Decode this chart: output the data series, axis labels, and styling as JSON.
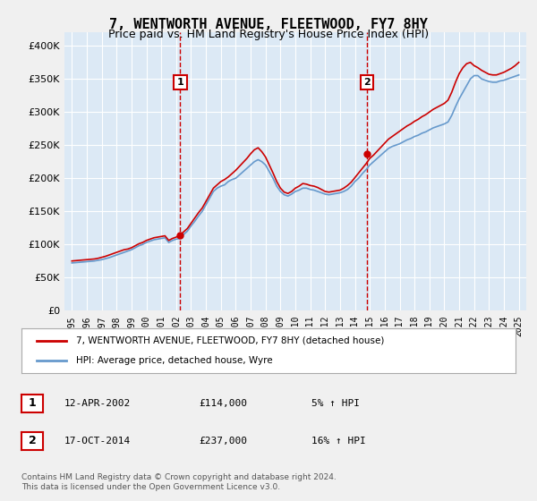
{
  "title": "7, WENTWORTH AVENUE, FLEETWOOD, FY7 8HY",
  "subtitle": "Price paid vs. HM Land Registry's House Price Index (HPI)",
  "background_color": "#dce9f5",
  "plot_bg_color": "#dce9f5",
  "ylabel_color": "#000000",
  "grid_color": "#ffffff",
  "hpi_line_color": "#6699cc",
  "price_line_color": "#cc0000",
  "vline_color": "#cc0000",
  "annotation_box_color": "#cc0000",
  "ylim": [
    0,
    420000
  ],
  "yticks": [
    0,
    50000,
    100000,
    150000,
    200000,
    250000,
    300000,
    350000,
    400000
  ],
  "ytick_labels": [
    "£0",
    "£50K",
    "£100K",
    "£150K",
    "£200K",
    "£250K",
    "£300K",
    "£350K",
    "£400K"
  ],
  "xlim_start": 1994.5,
  "xlim_end": 2025.5,
  "xticks": [
    1995,
    1996,
    1997,
    1998,
    1999,
    2000,
    2001,
    2002,
    2003,
    2004,
    2005,
    2006,
    2007,
    2008,
    2009,
    2010,
    2011,
    2012,
    2013,
    2014,
    2015,
    2016,
    2017,
    2018,
    2019,
    2020,
    2021,
    2022,
    2023,
    2024,
    2025
  ],
  "purchase1_x": 2002.28,
  "purchase1_y": 114000,
  "purchase1_label": "1",
  "purchase1_date": "12-APR-2002",
  "purchase1_price": "£114,000",
  "purchase1_hpi": "5% ↑ HPI",
  "purchase2_x": 2014.79,
  "purchase2_y": 237000,
  "purchase2_label": "2",
  "purchase2_date": "17-OCT-2014",
  "purchase2_price": "£237,000",
  "purchase2_hpi": "16% ↑ HPI",
  "legend_line1": "7, WENTWORTH AVENUE, FLEETWOOD, FY7 8HY (detached house)",
  "legend_line2": "HPI: Average price, detached house, Wyre",
  "footnote": "Contains HM Land Registry data © Crown copyright and database right 2024.\nThis data is licensed under the Open Government Licence v3.0.",
  "hpi_data_x": [
    1995.0,
    1995.25,
    1995.5,
    1995.75,
    1996.0,
    1996.25,
    1996.5,
    1996.75,
    1997.0,
    1997.25,
    1997.5,
    1997.75,
    1998.0,
    1998.25,
    1998.5,
    1998.75,
    1999.0,
    1999.25,
    1999.5,
    1999.75,
    2000.0,
    2000.25,
    2000.5,
    2000.75,
    2001.0,
    2001.25,
    2001.5,
    2001.75,
    2002.0,
    2002.25,
    2002.5,
    2002.75,
    2003.0,
    2003.25,
    2003.5,
    2003.75,
    2004.0,
    2004.25,
    2004.5,
    2004.75,
    2005.0,
    2005.25,
    2005.5,
    2005.75,
    2006.0,
    2006.25,
    2006.5,
    2006.75,
    2007.0,
    2007.25,
    2007.5,
    2007.75,
    2008.0,
    2008.25,
    2008.5,
    2008.75,
    2009.0,
    2009.25,
    2009.5,
    2009.75,
    2010.0,
    2010.25,
    2010.5,
    2010.75,
    2011.0,
    2011.25,
    2011.5,
    2011.75,
    2012.0,
    2012.25,
    2012.5,
    2012.75,
    2013.0,
    2013.25,
    2013.5,
    2013.75,
    2014.0,
    2014.25,
    2014.5,
    2014.75,
    2015.0,
    2015.25,
    2015.5,
    2015.75,
    2016.0,
    2016.25,
    2016.5,
    2016.75,
    2017.0,
    2017.25,
    2017.5,
    2017.75,
    2018.0,
    2018.25,
    2018.5,
    2018.75,
    2019.0,
    2019.25,
    2019.5,
    2019.75,
    2020.0,
    2020.25,
    2020.5,
    2020.75,
    2021.0,
    2021.25,
    2021.5,
    2021.75,
    2022.0,
    2022.25,
    2022.5,
    2022.75,
    2023.0,
    2023.25,
    2023.5,
    2023.75,
    2024.0,
    2024.25,
    2024.5,
    2024.75,
    2025.0
  ],
  "hpi_data_y": [
    72000,
    72500,
    73000,
    73500,
    74000,
    74500,
    75000,
    76000,
    77000,
    78500,
    80000,
    82000,
    84000,
    86000,
    88000,
    90000,
    92000,
    95000,
    98000,
    100000,
    103000,
    105000,
    107000,
    108000,
    109000,
    110000,
    103000,
    106000,
    108000,
    109000,
    115000,
    120000,
    128000,
    135000,
    143000,
    150000,
    160000,
    170000,
    180000,
    185000,
    188000,
    190000,
    195000,
    198000,
    200000,
    205000,
    210000,
    215000,
    220000,
    225000,
    228000,
    225000,
    220000,
    210000,
    200000,
    188000,
    180000,
    175000,
    173000,
    176000,
    180000,
    182000,
    185000,
    185000,
    183000,
    182000,
    180000,
    178000,
    176000,
    175000,
    176000,
    177000,
    178000,
    180000,
    183000,
    188000,
    195000,
    200000,
    207000,
    213000,
    220000,
    225000,
    230000,
    235000,
    240000,
    245000,
    248000,
    250000,
    252000,
    255000,
    258000,
    260000,
    263000,
    265000,
    268000,
    270000,
    273000,
    276000,
    278000,
    280000,
    282000,
    285000,
    295000,
    308000,
    320000,
    330000,
    340000,
    350000,
    355000,
    355000,
    350000,
    348000,
    346000,
    345000,
    345000,
    347000,
    348000,
    350000,
    352000,
    354000,
    356000
  ],
  "price_data_x": [
    1995.0,
    1995.25,
    1995.5,
    1995.75,
    1996.0,
    1996.25,
    1996.5,
    1996.75,
    1997.0,
    1997.25,
    1997.5,
    1997.75,
    1998.0,
    1998.25,
    1998.5,
    1998.75,
    1999.0,
    1999.25,
    1999.5,
    1999.75,
    2000.0,
    2000.25,
    2000.5,
    2000.75,
    2001.0,
    2001.25,
    2001.5,
    2001.75,
    2002.0,
    2002.25,
    2002.5,
    2002.75,
    2003.0,
    2003.25,
    2003.5,
    2003.75,
    2004.0,
    2004.25,
    2004.5,
    2004.75,
    2005.0,
    2005.25,
    2005.5,
    2005.75,
    2006.0,
    2006.25,
    2006.5,
    2006.75,
    2007.0,
    2007.25,
    2007.5,
    2007.75,
    2008.0,
    2008.25,
    2008.5,
    2008.75,
    2009.0,
    2009.25,
    2009.5,
    2009.75,
    2010.0,
    2010.25,
    2010.5,
    2010.75,
    2011.0,
    2011.25,
    2011.5,
    2011.75,
    2012.0,
    2012.25,
    2012.5,
    2012.75,
    2013.0,
    2013.25,
    2013.5,
    2013.75,
    2014.0,
    2014.25,
    2014.5,
    2014.75,
    2015.0,
    2015.25,
    2015.5,
    2015.75,
    2016.0,
    2016.25,
    2016.5,
    2016.75,
    2017.0,
    2017.25,
    2017.5,
    2017.75,
    2018.0,
    2018.25,
    2018.5,
    2018.75,
    2019.0,
    2019.25,
    2019.5,
    2019.75,
    2020.0,
    2020.25,
    2020.5,
    2020.75,
    2021.0,
    2021.25,
    2021.5,
    2021.75,
    2022.0,
    2022.25,
    2022.5,
    2022.75,
    2023.0,
    2023.25,
    2023.5,
    2023.75,
    2024.0,
    2024.25,
    2024.5,
    2024.75,
    2025.0
  ],
  "price_data_y": [
    75000,
    75500,
    76000,
    76500,
    77000,
    77500,
    78000,
    79000,
    80500,
    82000,
    84000,
    86000,
    88000,
    90000,
    92000,
    93000,
    95000,
    98000,
    101000,
    103000,
    106000,
    108000,
    110000,
    111000,
    112000,
    113000,
    106000,
    109000,
    111000,
    114000,
    119000,
    124000,
    132000,
    140000,
    148000,
    155000,
    165000,
    175000,
    185000,
    190000,
    195000,
    198000,
    202000,
    207000,
    212000,
    218000,
    224000,
    230000,
    237000,
    243000,
    246000,
    240000,
    232000,
    220000,
    208000,
    195000,
    185000,
    179000,
    177000,
    180000,
    185000,
    188000,
    192000,
    191000,
    189000,
    188000,
    186000,
    183000,
    180000,
    179000,
    180000,
    181000,
    182000,
    185000,
    189000,
    194000,
    201000,
    208000,
    215000,
    222000,
    230000,
    235000,
    241000,
    247000,
    253000,
    259000,
    263000,
    267000,
    271000,
    275000,
    279000,
    282000,
    286000,
    289000,
    293000,
    296000,
    300000,
    304000,
    307000,
    310000,
    313000,
    318000,
    330000,
    345000,
    358000,
    367000,
    373000,
    375000,
    370000,
    367000,
    363000,
    360000,
    357000,
    356000,
    356000,
    358000,
    360000,
    363000,
    366000,
    370000,
    375000
  ]
}
